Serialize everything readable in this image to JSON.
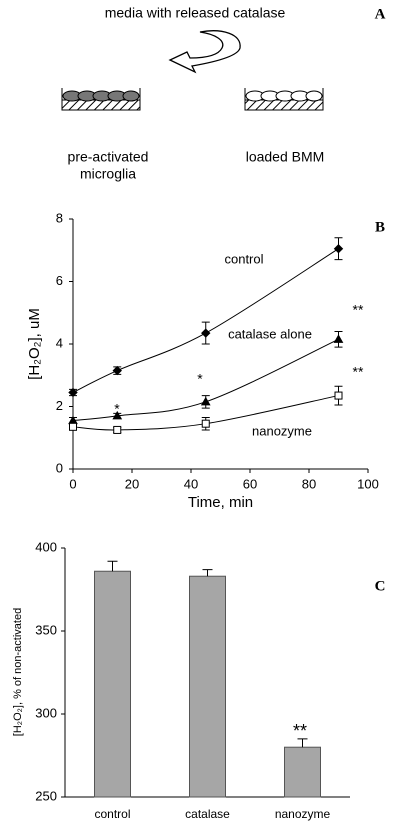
{
  "diagram": {
    "caption": "media with released catalase",
    "panel": "A",
    "left_label": [
      "pre-activated",
      "microglia"
    ],
    "right_label": "loaded BMM"
  },
  "chart_data": [
    {
      "type": "line",
      "panel": "B",
      "xlabel": "Time, min",
      "ylabel": "[H₂O₂], uM",
      "xlim": [
        0,
        100
      ],
      "xticks": [
        0,
        20,
        40,
        60,
        80,
        100
      ],
      "ylim": [
        0,
        8
      ],
      "yticks": [
        0,
        2,
        4,
        6,
        8
      ],
      "series": [
        {
          "name": "control",
          "marker": "diamond",
          "color": "#000000",
          "x": [
            0,
            15,
            45,
            90
          ],
          "values": [
            2.45,
            3.15,
            4.35,
            7.05
          ],
          "errors": [
            0.1,
            0.12,
            0.35,
            0.35
          ]
        },
        {
          "name": "catalase alone",
          "marker": "triangle",
          "color": "#000000",
          "x": [
            0,
            15,
            45,
            90
          ],
          "values": [
            1.55,
            1.7,
            2.15,
            4.15
          ],
          "errors": [
            0.1,
            0.08,
            0.2,
            0.25
          ]
        },
        {
          "name": "nanozyme",
          "marker": "open-square",
          "color": "#000000",
          "x": [
            0,
            15,
            45,
            90
          ],
          "values": [
            1.35,
            1.25,
            1.45,
            2.35
          ],
          "errors": [
            0.1,
            0.08,
            0.2,
            0.3
          ]
        }
      ],
      "annotations": [
        "*",
        "*",
        "**",
        "**"
      ]
    },
    {
      "type": "bar",
      "panel": "C",
      "ylabel": "[H₂O₂], % of non-activated",
      "color": "#a6a6a6",
      "categories": [
        "control",
        "catalase",
        "nanozyme"
      ],
      "values": [
        386,
        383,
        280
      ],
      "errors": [
        6,
        4,
        5
      ],
      "ylim": [
        250,
        400
      ],
      "yticks": [
        250,
        300,
        350,
        400
      ],
      "annotations": [
        "**"
      ]
    }
  ]
}
